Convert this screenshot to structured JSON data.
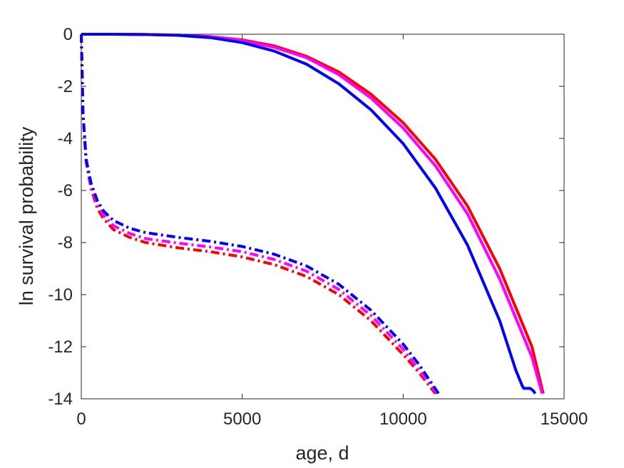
{
  "chart_data": {
    "type": "line",
    "xlabel": "age, d",
    "ylabel": "ln survival probability",
    "xlim": [
      0,
      15000
    ],
    "ylim": [
      -14,
      0
    ],
    "xticks": [
      0,
      5000,
      10000,
      15000
    ],
    "yticks": [
      0,
      -2,
      -4,
      -6,
      -8,
      -10,
      -12,
      -14
    ],
    "grid": false,
    "legend": "none",
    "series": [
      {
        "color": "#ff0000",
        "style": "solid",
        "x": [
          0,
          1000,
          2000,
          3000,
          4000,
          5000,
          6000,
          7000,
          8000,
          9000,
          10000,
          11000,
          12000,
          13000,
          14000,
          14350
        ],
        "y": [
          0,
          0,
          -0.01,
          -0.03,
          -0.09,
          -0.22,
          -0.45,
          -0.85,
          -1.45,
          -2.3,
          -3.4,
          -4.8,
          -6.6,
          -9.0,
          -12.0,
          -13.8
        ]
      },
      {
        "color": "#ff00ff",
        "style": "solid",
        "x": [
          0,
          1000,
          2000,
          3000,
          4000,
          5000,
          6000,
          7000,
          8000,
          9000,
          10000,
          11000,
          12000,
          13000,
          14000,
          14320
        ],
        "y": [
          0,
          0,
          -0.01,
          -0.03,
          -0.1,
          -0.24,
          -0.5,
          -0.9,
          -1.55,
          -2.45,
          -3.6,
          -5.05,
          -6.9,
          -9.4,
          -12.4,
          -13.8
        ]
      },
      {
        "color": "#0000ff",
        "style": "solid",
        "x": [
          0,
          1000,
          2000,
          3000,
          4000,
          5000,
          6000,
          7000,
          8000,
          9000,
          10000,
          11000,
          12000,
          13000,
          13500,
          13700,
          13750,
          13950,
          14050,
          14100
        ],
        "y": [
          0,
          0,
          -0.01,
          -0.04,
          -0.13,
          -0.32,
          -0.65,
          -1.15,
          -1.9,
          -2.9,
          -4.2,
          -5.9,
          -8.1,
          -11.0,
          -12.9,
          -13.5,
          -13.6,
          -13.6,
          -13.7,
          -13.8
        ]
      },
      {
        "color": "#ff0000",
        "style": "dashdot",
        "x": [
          0,
          50,
          150,
          300,
          500,
          700,
          1000,
          1500,
          2000,
          3000,
          4000,
          5000,
          6000,
          7000,
          8000,
          9000,
          10000,
          10500,
          11000
        ],
        "y": [
          0,
          -3.0,
          -4.9,
          -5.9,
          -6.7,
          -7.1,
          -7.5,
          -7.8,
          -8.0,
          -8.2,
          -8.35,
          -8.55,
          -8.85,
          -9.3,
          -10.0,
          -11.0,
          -12.3,
          -13.0,
          -13.8
        ]
      },
      {
        "color": "#ff00ff",
        "style": "dashdot",
        "x": [
          0,
          50,
          150,
          300,
          500,
          700,
          1000,
          1500,
          2000,
          3000,
          4000,
          5000,
          6000,
          7000,
          8000,
          9000,
          10000,
          10500,
          11050
        ],
        "y": [
          0,
          -3.0,
          -4.9,
          -5.8,
          -6.55,
          -6.95,
          -7.35,
          -7.65,
          -7.85,
          -8.02,
          -8.17,
          -8.35,
          -8.65,
          -9.1,
          -9.8,
          -10.8,
          -12.1,
          -12.9,
          -13.8
        ]
      },
      {
        "color": "#0000ff",
        "style": "dashdot",
        "x": [
          0,
          50,
          150,
          300,
          500,
          700,
          1000,
          1500,
          2000,
          3000,
          4000,
          5000,
          6000,
          7000,
          8000,
          9000,
          10000,
          10500,
          11100
        ],
        "y": [
          0,
          -3.0,
          -4.8,
          -5.7,
          -6.4,
          -6.8,
          -7.15,
          -7.45,
          -7.62,
          -7.8,
          -7.95,
          -8.15,
          -8.45,
          -8.9,
          -9.6,
          -10.6,
          -11.9,
          -12.7,
          -13.8
        ]
      }
    ]
  }
}
